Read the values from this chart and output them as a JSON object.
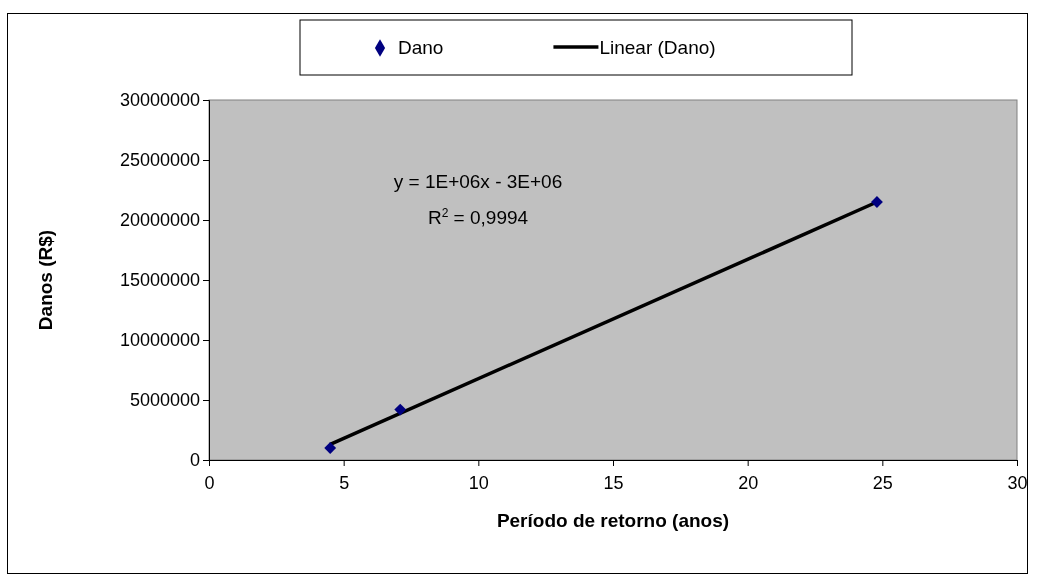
{
  "chart_data": {
    "type": "scatter",
    "xlabel": "Período de retorno (anos)",
    "ylabel": "Danos (R$)",
    "x": [
      4.5,
      7.1,
      24.8
    ],
    "series": [
      {
        "name": "Dano",
        "color": "#000080",
        "marker": "diamond",
        "values": [
          1000000,
          4200000,
          21500000
        ]
      },
      {
        "name": "Linear (Dano)",
        "type": "line",
        "color": "#000000",
        "marker": "none",
        "line_style": "solid",
        "x": [
          4.5,
          24.8
        ],
        "values": [
          1300000,
          21500000
        ]
      }
    ],
    "xlim": [
      0,
      30
    ],
    "xticks": [
      0,
      5,
      10,
      15,
      20,
      25,
      30
    ],
    "ylim": [
      0,
      30000000
    ],
    "yticks": [
      0,
      5000000,
      10000000,
      15000000,
      20000000,
      25000000,
      30000000
    ],
    "grid": false,
    "legend": "top",
    "annotations": [
      "y = 1E+06x - 3E+06",
      "R$^{2}$ = 0,9994"
    ]
  }
}
